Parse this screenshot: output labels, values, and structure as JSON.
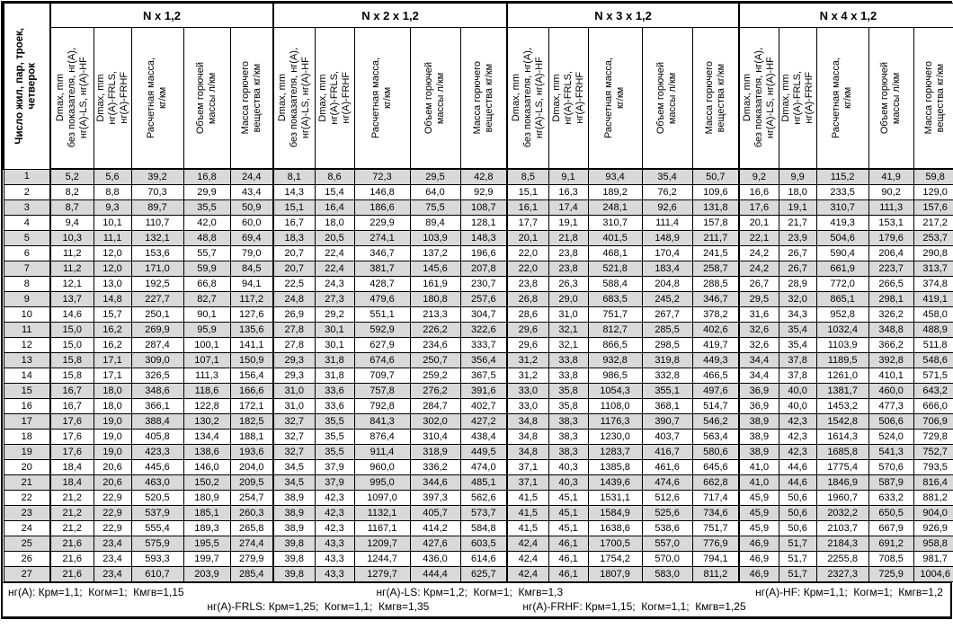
{
  "table": {
    "corner_header": "Число жил, пар, троек,\nчетверок",
    "groups": [
      {
        "title": "N x 1,2"
      },
      {
        "title": "N x 2 x 1,2"
      },
      {
        "title": "N x 3 x 1,2"
      },
      {
        "title": "N x 4 x 1,2"
      }
    ],
    "column_labels": [
      "Dmax, mm\nбез показателя, нг(А),\nнг(А)-LS, нг(А)-HF",
      "Dmax, mm\nнг(А)-FRLS,\nнг(А)-FRHF",
      "Расчетная масса,\nкг/км",
      "Объем горючей\nмассы л/км",
      "Масса горючего\nвещества кг/км"
    ],
    "rows": [
      [
        "1",
        "5,2",
        "5,6",
        "39,2",
        "16,8",
        "24,4",
        "8,1",
        "8,6",
        "72,3",
        "29,5",
        "42,8",
        "8,5",
        "9,1",
        "93,4",
        "35,4",
        "50,7",
        "9,2",
        "9,9",
        "115,2",
        "41,9",
        "59,8"
      ],
      [
        "2",
        "8,2",
        "8,8",
        "70,3",
        "29,9",
        "43,4",
        "14,3",
        "15,4",
        "146,8",
        "64,0",
        "92,9",
        "15,1",
        "16,3",
        "189,2",
        "76,2",
        "109,6",
        "16,6",
        "18,0",
        "233,5",
        "90,2",
        "129,0"
      ],
      [
        "3",
        "8,7",
        "9,3",
        "89,7",
        "35,5",
        "50,9",
        "15,1",
        "16,4",
        "186,6",
        "75,5",
        "108,7",
        "16,1",
        "17,4",
        "248,1",
        "92,6",
        "131,8",
        "17,6",
        "19,1",
        "310,7",
        "111,3",
        "157,6"
      ],
      [
        "4",
        "9,4",
        "10,1",
        "110,7",
        "42,0",
        "60,0",
        "16,7",
        "18,0",
        "229,9",
        "89,4",
        "128,1",
        "17,7",
        "19,1",
        "310,7",
        "111,4",
        "157,8",
        "20,1",
        "21,7",
        "419,3",
        "153,1",
        "217,2"
      ],
      [
        "5",
        "10,3",
        "11,1",
        "132,1",
        "48,8",
        "69,4",
        "18,3",
        "20,5",
        "274,1",
        "103,9",
        "148,3",
        "20,1",
        "21,8",
        "401,5",
        "148,9",
        "211,7",
        "22,1",
        "23,9",
        "504,6",
        "179,6",
        "253,7"
      ],
      [
        "6",
        "11,2",
        "12,0",
        "153,6",
        "55,7",
        "79,0",
        "20,7",
        "22,4",
        "346,7",
        "137,2",
        "196,6",
        "22,0",
        "23,8",
        "468,1",
        "170,4",
        "241,5",
        "24,2",
        "26,7",
        "590,4",
        "206,4",
        "290,8"
      ],
      [
        "7",
        "11,2",
        "12,0",
        "171,0",
        "59,9",
        "84,5",
        "20,7",
        "22,4",
        "381,7",
        "145,6",
        "207,8",
        "22,0",
        "23,8",
        "521,8",
        "183,4",
        "258,7",
        "24,2",
        "26,7",
        "661,9",
        "223,7",
        "313,7"
      ],
      [
        "8",
        "12,1",
        "13,0",
        "192,5",
        "66,8",
        "94,1",
        "22,5",
        "24,3",
        "428,7",
        "161,9",
        "230,7",
        "23,8",
        "26,3",
        "588,4",
        "204,8",
        "288,5",
        "26,7",
        "28,9",
        "772,0",
        "266,5",
        "374,8"
      ],
      [
        "9",
        "13,7",
        "14,8",
        "227,7",
        "82,7",
        "117,2",
        "24,8",
        "27,3",
        "479,6",
        "180,8",
        "257,6",
        "26,8",
        "29,0",
        "683,5",
        "245,2",
        "346,7",
        "29,5",
        "32,0",
        "865,1",
        "298,1",
        "419,1"
      ],
      [
        "10",
        "14,6",
        "15,7",
        "250,1",
        "90,1",
        "127,6",
        "26,9",
        "29,2",
        "551,1",
        "213,3",
        "304,7",
        "28,6",
        "31,0",
        "751,7",
        "267,7",
        "378,2",
        "31,6",
        "34,3",
        "952,8",
        "326,2",
        "458,0"
      ],
      [
        "11",
        "15,0",
        "16,2",
        "269,9",
        "95,9",
        "135,6",
        "27,8",
        "30,1",
        "592,9",
        "226,2",
        "322,6",
        "29,6",
        "32,1",
        "812,7",
        "285,5",
        "402,6",
        "32,6",
        "35,4",
        "1032,4",
        "348,8",
        "488,9"
      ],
      [
        "12",
        "15,0",
        "16,2",
        "287,4",
        "100,1",
        "141,1",
        "27,8",
        "30,1",
        "627,9",
        "234,6",
        "333,7",
        "29,6",
        "32,1",
        "866,5",
        "298,5",
        "419,7",
        "32,6",
        "35,4",
        "1103,9",
        "366,2",
        "511,8"
      ],
      [
        "13",
        "15,8",
        "17,1",
        "309,0",
        "107,1",
        "150,9",
        "29,3",
        "31,8",
        "674,6",
        "250,7",
        "356,4",
        "31,2",
        "33,8",
        "932,8",
        "319,8",
        "449,3",
        "34,4",
        "37,8",
        "1189,5",
        "392,8",
        "548,6"
      ],
      [
        "14",
        "15,8",
        "17,1",
        "326,5",
        "111,3",
        "156,4",
        "29,3",
        "31,8",
        "709,7",
        "259,2",
        "367,5",
        "31,2",
        "33,8",
        "986,5",
        "332,8",
        "466,5",
        "34,4",
        "37,8",
        "1261,0",
        "410,1",
        "571,5"
      ],
      [
        "15",
        "16,7",
        "18,0",
        "348,6",
        "118,6",
        "166,6",
        "31,0",
        "33,6",
        "757,8",
        "276,2",
        "391,6",
        "33,0",
        "35,8",
        "1054,3",
        "355,1",
        "497,6",
        "36,9",
        "40,0",
        "1381,7",
        "460,0",
        "643,2"
      ],
      [
        "16",
        "16,7",
        "18,0",
        "366,1",
        "122,8",
        "172,1",
        "31,0",
        "33,6",
        "792,8",
        "284,7",
        "402,7",
        "33,0",
        "35,8",
        "1108,0",
        "368,1",
        "514,7",
        "36,9",
        "40,0",
        "1453,2",
        "477,3",
        "666,0"
      ],
      [
        "17",
        "17,6",
        "19,0",
        "388,4",
        "130,2",
        "182,5",
        "32,7",
        "35,5",
        "841,3",
        "302,0",
        "427,2",
        "34,8",
        "38,3",
        "1176,3",
        "390,7",
        "546,2",
        "38,9",
        "42,3",
        "1542,8",
        "506,6",
        "706,9"
      ],
      [
        "18",
        "17,6",
        "19,0",
        "405,8",
        "134,4",
        "188,1",
        "32,7",
        "35,5",
        "876,4",
        "310,4",
        "438,4",
        "34,8",
        "38,3",
        "1230,0",
        "403,7",
        "563,4",
        "38,9",
        "42,3",
        "1614,3",
        "524,0",
        "729,8"
      ],
      [
        "19",
        "17,6",
        "19,0",
        "423,3",
        "138,6",
        "193,6",
        "32,7",
        "35,5",
        "911,4",
        "318,9",
        "449,5",
        "34,8",
        "38,3",
        "1283,7",
        "416,7",
        "580,6",
        "38,9",
        "42,3",
        "1685,8",
        "541,3",
        "752,7"
      ],
      [
        "20",
        "18,4",
        "20,6",
        "445,6",
        "146,0",
        "204,0",
        "34,5",
        "37,9",
        "960,0",
        "336,2",
        "474,0",
        "37,1",
        "40,3",
        "1385,8",
        "461,6",
        "645,6",
        "41,0",
        "44,6",
        "1775,4",
        "570,6",
        "793,5"
      ],
      [
        "21",
        "18,4",
        "20,6",
        "463,0",
        "150,2",
        "209,5",
        "34,5",
        "37,9",
        "995,0",
        "344,6",
        "485,1",
        "37,1",
        "40,3",
        "1439,6",
        "474,6",
        "662,8",
        "41,0",
        "44,6",
        "1846,9",
        "587,9",
        "816,4"
      ],
      [
        "22",
        "21,2",
        "22,9",
        "520,5",
        "180,9",
        "254,7",
        "38,9",
        "42,3",
        "1097,0",
        "397,3",
        "562,6",
        "41,5",
        "45,1",
        "1531,1",
        "512,6",
        "717,4",
        "45,9",
        "50,6",
        "1960,7",
        "633,2",
        "881,2"
      ],
      [
        "23",
        "21,2",
        "22,9",
        "537,9",
        "185,1",
        "260,3",
        "38,9",
        "42,3",
        "1132,1",
        "405,7",
        "573,7",
        "41,5",
        "45,1",
        "1584,9",
        "525,6",
        "734,6",
        "45,9",
        "50,6",
        "2032,2",
        "650,5",
        "904,0"
      ],
      [
        "24",
        "21,2",
        "22,9",
        "555,4",
        "189,3",
        "265,8",
        "38,9",
        "42,3",
        "1167,1",
        "414,2",
        "584,8",
        "41,5",
        "45,1",
        "1638,6",
        "538,6",
        "751,7",
        "45,9",
        "50,6",
        "2103,7",
        "667,9",
        "926,9"
      ],
      [
        "25",
        "21,6",
        "23,4",
        "575,9",
        "195,5",
        "274,4",
        "39,8",
        "43,3",
        "1209,7",
        "427,6",
        "603,5",
        "42,4",
        "46,1",
        "1700,5",
        "557,0",
        "776,9",
        "46,9",
        "51,7",
        "2184,3",
        "691,2",
        "958,8"
      ],
      [
        "26",
        "21,6",
        "23,4",
        "593,3",
        "199,7",
        "279,9",
        "39,8",
        "43,3",
        "1244,7",
        "436,0",
        "614,6",
        "42,4",
        "46,1",
        "1754,2",
        "570,0",
        "794,1",
        "46,9",
        "51,7",
        "2255,8",
        "708,5",
        "981,7"
      ],
      [
        "27",
        "21,6",
        "23,4",
        "610,7",
        "203,9",
        "285,4",
        "39,8",
        "43,3",
        "1279,7",
        "444,4",
        "625,7",
        "42,4",
        "46,1",
        "1807,9",
        "583,0",
        "811,2",
        "46,9",
        "51,7",
        "2327,3",
        "725,9",
        "1004,6"
      ]
    ]
  },
  "footer": {
    "line1": [
      "нг(А): Крм=1,1;  Когм=1;  Кмгв=1,15",
      "нг(А)-LS: Крм=1,2;  Когм=1;  Кмгв=1,3",
      "нг(А)-HF: Крм=1,1;  Когм=1;  Кмгв=1,2"
    ],
    "line2": [
      "нг(А)-FRLS: Крм=1,25;  Когм=1,1;  Кмгв=1,35",
      "нг(А)-FRHF: Крм=1,15;  Когм=1,1;  Кмгв=1,25"
    ]
  },
  "colors": {
    "row_shade": "#d9d9d9",
    "border": "#000000",
    "background": "#ffffff"
  }
}
